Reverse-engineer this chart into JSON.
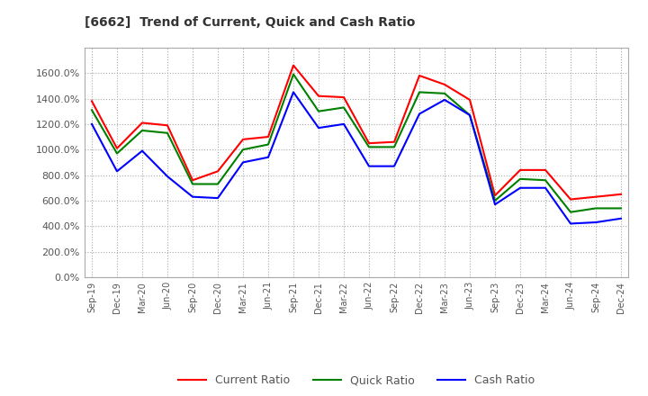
{
  "title": "[6662]  Trend of Current, Quick and Cash Ratio",
  "x_labels": [
    "Sep-19",
    "Dec-19",
    "Mar-20",
    "Jun-20",
    "Sep-20",
    "Dec-20",
    "Mar-21",
    "Jun-21",
    "Sep-21",
    "Dec-21",
    "Mar-22",
    "Jun-22",
    "Sep-22",
    "Dec-22",
    "Mar-23",
    "Jun-23",
    "Sep-23",
    "Dec-23",
    "Mar-24",
    "Jun-24",
    "Sep-24",
    "Dec-24"
  ],
  "current_ratio": [
    1380,
    1010,
    1210,
    1190,
    760,
    830,
    1080,
    1100,
    1660,
    1420,
    1410,
    1050,
    1060,
    1580,
    1510,
    1390,
    640,
    840,
    840,
    610,
    630,
    650
  ],
  "quick_ratio": [
    1310,
    970,
    1150,
    1130,
    730,
    730,
    1000,
    1040,
    1590,
    1300,
    1330,
    1020,
    1020,
    1450,
    1440,
    1270,
    600,
    770,
    760,
    510,
    540,
    540
  ],
  "cash_ratio": [
    1200,
    830,
    990,
    790,
    630,
    620,
    900,
    940,
    1450,
    1170,
    1200,
    870,
    870,
    1280,
    1390,
    1270,
    570,
    700,
    700,
    420,
    430,
    460
  ],
  "current_color": "#ff0000",
  "quick_color": "#008000",
  "cash_color": "#0000ff",
  "ylim": [
    0,
    1800
  ],
  "yticks": [
    0,
    200,
    400,
    600,
    800,
    1000,
    1200,
    1400,
    1600
  ],
  "background_color": "#ffffff",
  "grid_color": "#aaaaaa"
}
